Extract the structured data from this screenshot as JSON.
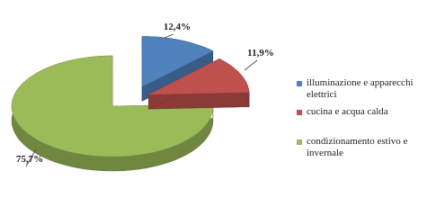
{
  "chart_data": {
    "type": "pie",
    "categories": [
      "illuminazione e apparecchi elettrici",
      "cucina e acqua calda",
      "condizionamento estivo e invernale"
    ],
    "values": [
      12.4,
      11.9,
      75.7
    ],
    "value_labels": [
      "12,4%",
      "11,9%",
      "75,7%"
    ],
    "colors": [
      "#4f81bd",
      "#c0504d",
      "#9bbb59"
    ],
    "legend": "right"
  }
}
